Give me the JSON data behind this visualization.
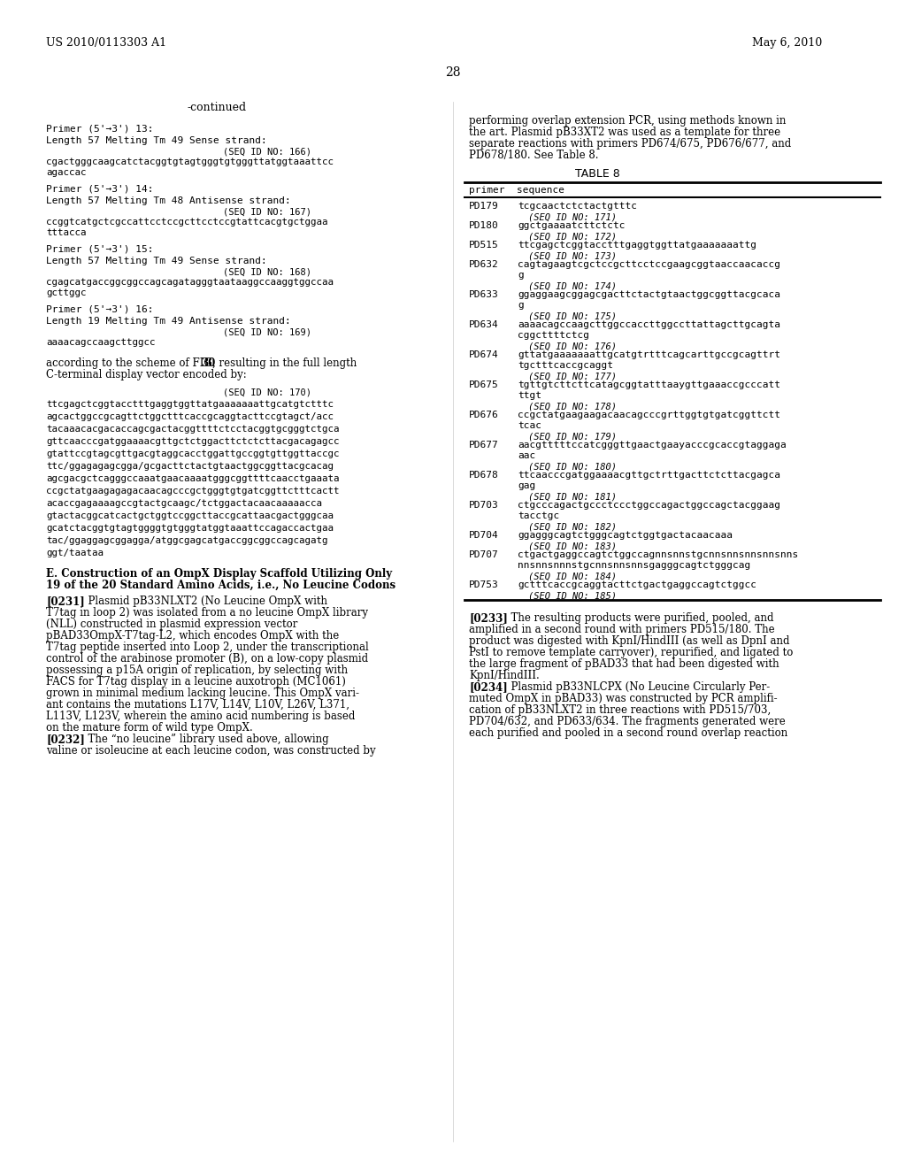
{
  "header_left": "US 2010/0113303 A1",
  "header_right": "May 6, 2010",
  "page_number": "28",
  "continued_label": "-continued",
  "left_column": [
    "Primer (5'→3') 13:",
    "Length 57 Melting Tm 49 Sense strand:",
    "                                    (SEQ ID NO: 166)",
    "cgactgggcaagcatctacggtgtagtgggtgtgggttatggtaaattcc",
    "agaccac",
    "",
    "Primer (5'→3') 14:",
    "Length 57 Melting Tm 48 Antisense strand:",
    "                                    (SEQ ID NO: 167)",
    "ccggtcatgctcgccattcctccgcttcctccgtattcacgtgctggaa",
    "tttacca",
    "",
    "Primer (5'→3') 15:",
    "Length 57 Melting Tm 49 Sense strand:",
    "                                    (SEQ ID NO: 168)",
    "cgagcatgaccggcggccagcagatagggtaataaggccaaggtggccaa",
    "gcttggc",
    "",
    "Primer (5'→3') 16:",
    "Length 19 Melting Tm 49 Antisense strand:",
    "                                    (SEQ ID NO: 169)",
    "aaaacagccaagcttggcc",
    "",
    "according to the scheme of FIG. 30, resulting in the full length",
    "C-terminal display vector encoded by:",
    "",
    "",
    "                                    (SEQ ID NO: 170)",
    "ttcgagctcggtacctttgaggtggttatgaaaaaaattgcatgtctttc",
    "",
    "agcactggccgcagttctggctttcaccgcaggtacttccgtagct/acc",
    "",
    "tacaaacacgacaccagcgactacggttttctcctacggtgcgggtctgca",
    "",
    "gttcaacccgatggaaaacgttgctctggacttctctcttacgacagagcc",
    "",
    "gtattccgtagcgttgacgtaggcacctggattgccggtgttggttaccgc",
    "",
    "ttc/ggagagagcgga/gcgacttctactgtaactggcggttacgcacag",
    "",
    "agcgacgctcagggccaaatgaacaaaatgggcggttttcaacctgaaata",
    "",
    "ccgctatgaagagagacaacagcccgctgggtgtgatcggttctttcactt",
    "",
    "acaccgagaaaagccgtactgcaagc/tctggactacaacaaaaacca",
    "",
    "gtactacggcatcactgctggtccggcttaccgcattaacgactgggcaa",
    "",
    "gcatctacggtgtagtggggtgtgggtatggtaaattccagaccactgaa",
    "",
    "tac/ggaggagcggagga/atggcgagcatgaccggcggccagcagatg",
    "",
    "ggt/taataa",
    "",
    "",
    "E. Construction of an OmpX Display Scaffold Utilizing Only",
    "19 of the 20 Standard Amino Acids, i.e., No Leucine Codons",
    "",
    "[0231]   Plasmid pB33NLXT2 (No Leucine OmpX with",
    "T7tag in loop 2) was isolated from a no leucine OmpX library",
    "(NLL) constructed in plasmid expression vector",
    "pBAD33OmpX-T7tag-L2, which encodes OmpX with the",
    "T7tag peptide inserted into Loop 2, under the transcriptional",
    "control of the arabinose promoter (B), on a low-copy plasmid",
    "possessing a p15A origin of replication, by selecting with",
    "FACS for T7tag display in a leucine auxotroph (MC1061)",
    "grown in minimal medium lacking leucine. This OmpX vari-",
    "ant contains the mutations L17V, L14V, L10V, L26V, L371,",
    "L113V, L123V, wherein the amino acid numbering is based",
    "on the mature form of wild type OmpX.",
    "[0232]   The “no leucine” library used above, allowing",
    "valine or isoleucine at each leucine codon, was constructed by"
  ],
  "right_column_intro": "performing overlap extension PCR, using methods known in\nthe art. Plasmid pB33XT2 was used as a template for three\nseparate reactions with primers PD674/675, PD676/677, and\nPD678/180. See Table 8.",
  "table_title": "TABLE 8",
  "table_headers": [
    "primer",
    "sequence"
  ],
  "table_rows": [
    [
      "PD179",
      "tcgcaactctctactgtttc\n(SEQ ID NO: 171)"
    ],
    [
      "PD180",
      "ggctgaaaatcttctctc\n(SEQ ID NO: 172)"
    ],
    [
      "PD515",
      "ttcgagctcggtacctttgaggtggttatgaaaaaaattg\n(SEQ ID NO: 173)"
    ],
    [
      "PD632",
      "cagtagaagtcgctccgcttcctccgaagcggtaaccaacaccg\ng\n(SEQ ID NO: 174)"
    ],
    [
      "PD633",
      "ggaggaagcggagcgacttctactgtaactggcggttacgcaca\ng\n(SEQ ID NO: 175)"
    ],
    [
      "PD634",
      "aaaacagccaagcttggccaccttggccttattagcttgcagta\ncggcttttctcg\n(SEQ ID NO: 176)"
    ],
    [
      "PD674",
      "gttatgaaaaaaattgcatgtrtttcagcarttgccgcagttrt\ntgctttcaccgcaggt\n(SEQ ID NO: 177)"
    ],
    [
      "PD675",
      "tgttgtcttcttcatagcggtatttaaygttgaaaccgcccatt\nttgt\n(SEQ ID NO: 178)"
    ],
    [
      "PD676",
      "ccgctatgaagaagacaacagcccgrttggtgtgatcggttctt\ntcac\n(SEQ ID NO: 179)"
    ],
    [
      "PD677",
      "aacgtttttccatcgggttgaactgaayacccgcaccgtaggaga\naac\n(SEQ ID NO: 180)"
    ],
    [
      "PD678",
      "ttcaacccgatggaaaacgttgctrttgacttctcttacgagca\ngag\n(SEQ ID NO: 181)"
    ],
    [
      "PD703",
      "ctgcccagactgccctccctggccagactggccagctacggaag\ntacctgc\n(SEQ ID NO: 182)"
    ],
    [
      "PD704",
      "ggagggcagtctgggcagtctggtgactacaacaaa\n(SEQ ID NO: 183)"
    ],
    [
      "PD707",
      "ctgactgaggccagtctggccagnnsnnstgcnnsnnsnnsnnsnns\nnnsnnsnnnstgcnnsnnsnnsgagggcagtctgggcag\n(SEQ ID NO: 184)"
    ],
    [
      "PD753",
      "gctttcaccgcaggtacttctgactgaggccagtctggcc\n(SEQ ID NO: 185)"
    ]
  ],
  "right_column_para233": "[0233]   The resulting products were purified, pooled, and\namplified in a second round with primers PD515/180. The\nproduct was digested with KpnI/HindIII (as well as DpnI and\nPstI to remove template carryover), repurified, and ligated to\nthe large fragment of pBAD33 that had been digested with\nKpnI/HindIII.",
  "right_column_para234": "[0234]   Plasmid pB33NLCPX (No Leucine Circularly Per-\nmuted OmpX in pBAD33) was constructed by PCR amplifi-\ncation of pB33NLXT2 in three reactions with PD515/703,\nPD704/632, and PD633/634. The fragments generated were\neach purified and pooled in a second round overlap reaction",
  "bg_color": "#ffffff",
  "text_color": "#000000",
  "font_size_header": 9,
  "font_size_body": 8.5,
  "font_size_mono": 7.5
}
